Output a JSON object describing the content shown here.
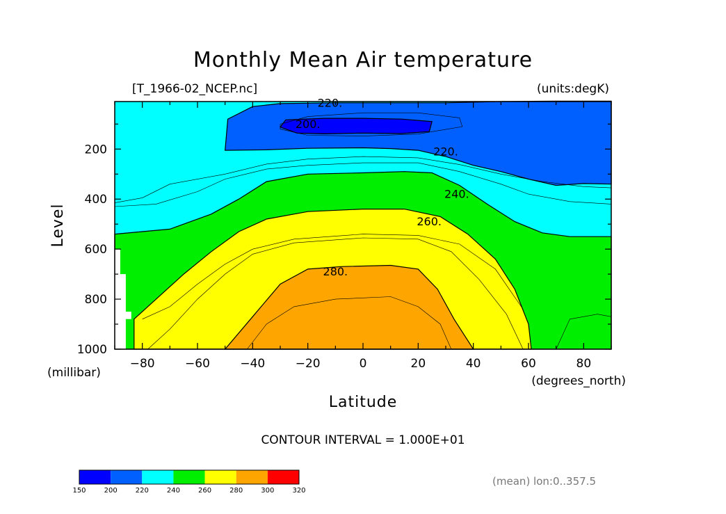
{
  "chart_data": {
    "type": "contour",
    "title": "Monthly Mean Air temperature",
    "subtitle_left": "[T_1966-02_NCEP.nc]",
    "subtitle_right": "(units:degK)",
    "xlabel": "Latitude",
    "xunit": "(degrees_north)",
    "ylabel": "Level",
    "yunit": "(millibar)",
    "xlim": [
      -90,
      90
    ],
    "ylim": [
      1000,
      10
    ],
    "xticks": [
      "−80",
      "−60",
      "−40",
      "−20",
      "0",
      "20",
      "40",
      "60",
      "80"
    ],
    "xtick_values": [
      -80,
      -60,
      -40,
      -20,
      0,
      20,
      40,
      60,
      80
    ],
    "yticks": [
      "200",
      "400",
      "600",
      "800",
      "1000"
    ],
    "ytick_values": [
      200,
      400,
      600,
      800,
      1000
    ],
    "contour_labels": [
      {
        "text": "220.",
        "lat": -12,
        "lev": 25
      },
      {
        "text": "200.",
        "lat": -20,
        "lev": 110
      },
      {
        "text": "220.",
        "lat": 30,
        "lev": 220
      },
      {
        "text": "240.",
        "lat": 34,
        "lev": 390
      },
      {
        "text": "260.",
        "lat": 24,
        "lev": 500
      },
      {
        "text": "280.",
        "lat": -10,
        "lev": 700
      }
    ],
    "contour_interval_text": "CONTOUR INTERVAL = 1.000E+01",
    "footnote": "(mean) lon:0..357.5",
    "colorbar": {
      "ticks": [
        "150",
        "200",
        "220",
        "240",
        "260",
        "280",
        "300",
        "320"
      ],
      "colors": [
        "#0000ff",
        "#0060ff",
        "#00ffff",
        "#00ee00",
        "#ffff00",
        "#ffa500",
        "#ff0000"
      ]
    },
    "bands": [
      {
        "name": "<200",
        "color": "#0000ff",
        "boundary": [
          [
            -30,
            112
          ],
          [
            -24,
            136
          ],
          [
            -14,
            139
          ],
          [
            0,
            136
          ],
          [
            14,
            138
          ],
          [
            24,
            130
          ],
          [
            25,
            90
          ],
          [
            14,
            80
          ],
          [
            0,
            77
          ],
          [
            -14,
            77
          ],
          [
            -28,
            83
          ]
        ]
      },
      {
        "name": "200-220",
        "color": "#0060ff",
        "boundary": [
          [
            -50,
            205
          ],
          [
            -49,
            80
          ],
          [
            -40,
            30
          ],
          [
            -30,
            18
          ],
          [
            -10,
            15
          ],
          [
            10,
            15
          ],
          [
            30,
            15
          ],
          [
            50,
            10
          ],
          [
            70,
            8
          ],
          [
            90,
            8
          ],
          [
            90,
            340
          ],
          [
            80,
            338
          ],
          [
            70,
            345
          ],
          [
            60,
            320
          ],
          [
            50,
            290
          ],
          [
            40,
            265
          ],
          [
            30,
            230
          ],
          [
            20,
            205
          ],
          [
            10,
            198
          ],
          [
            0,
            195
          ],
          [
            -20,
            197
          ],
          [
            -35,
            203
          ]
        ]
      },
      {
        "name": "240-260",
        "color": "#00ee00",
        "boundary": [
          [
            -90,
            540
          ],
          [
            -70,
            520
          ],
          [
            -55,
            460
          ],
          [
            -45,
            400
          ],
          [
            -35,
            330
          ],
          [
            -20,
            300
          ],
          [
            0,
            295
          ],
          [
            15,
            290
          ],
          [
            25,
            295
          ],
          [
            35,
            345
          ],
          [
            45,
            420
          ],
          [
            55,
            490
          ],
          [
            65,
            535
          ],
          [
            75,
            550
          ],
          [
            90,
            550
          ],
          [
            90,
            1000
          ],
          [
            -90,
            1000
          ]
        ]
      },
      {
        "name": "260-280",
        "color": "#ffff00",
        "boundary": [
          [
            -83,
            880
          ],
          [
            -75,
            800
          ],
          [
            -65,
            700
          ],
          [
            -55,
            610
          ],
          [
            -45,
            530
          ],
          [
            -35,
            480
          ],
          [
            -20,
            450
          ],
          [
            0,
            440
          ],
          [
            15,
            440
          ],
          [
            28,
            470
          ],
          [
            38,
            540
          ],
          [
            48,
            640
          ],
          [
            55,
            760
          ],
          [
            60,
            900
          ],
          [
            61,
            1000
          ],
          [
            -83,
            1000
          ]
        ]
      },
      {
        "name": "280-300",
        "color": "#ffa500",
        "boundary": [
          [
            -50,
            1000
          ],
          [
            -40,
            870
          ],
          [
            -30,
            740
          ],
          [
            -20,
            680
          ],
          [
            -8,
            670
          ],
          [
            10,
            665
          ],
          [
            20,
            680
          ],
          [
            27,
            760
          ],
          [
            33,
            880
          ],
          [
            40,
            1000
          ]
        ]
      }
    ],
    "missing_region": {
      "boundary": [
        [
          -90,
          600
        ],
        [
          -88,
          600
        ],
        [
          -88,
          700
        ],
        [
          -86,
          700
        ],
        [
          -86,
          850
        ],
        [
          -84,
          850
        ],
        [
          -84,
          880
        ],
        [
          -86,
          880
        ],
        [
          -86,
          1000
        ],
        [
          -90,
          1000
        ]
      ]
    },
    "contour_lines": [
      [
        [
          -90,
          415
        ],
        [
          -80,
          395
        ],
        [
          -70,
          340
        ],
        [
          -50,
          300
        ],
        [
          -35,
          260
        ],
        [
          -20,
          240
        ],
        [
          0,
          230
        ],
        [
          20,
          235
        ],
        [
          35,
          262
        ],
        [
          50,
          300
        ],
        [
          65,
          330
        ],
        [
          80,
          350
        ],
        [
          90,
          355
        ]
      ],
      [
        [
          -90,
          430
        ],
        [
          -75,
          420
        ],
        [
          -60,
          370
        ],
        [
          -50,
          320
        ],
        [
          -35,
          280
        ],
        [
          -20,
          265
        ],
        [
          0,
          255
        ],
        [
          20,
          255
        ],
        [
          35,
          290
        ],
        [
          50,
          340
        ],
        [
          60,
          380
        ],
        [
          75,
          410
        ],
        [
          90,
          420
        ]
      ],
      [
        [
          -78,
          1000
        ],
        [
          -70,
          920
        ],
        [
          -60,
          800
        ],
        [
          -50,
          700
        ],
        [
          -40,
          620
        ],
        [
          -25,
          575
        ],
        [
          0,
          555
        ],
        [
          20,
          560
        ],
        [
          32,
          610
        ],
        [
          42,
          720
        ],
        [
          52,
          860
        ],
        [
          58,
          1000
        ]
      ],
      [
        [
          -42,
          1000
        ],
        [
          -35,
          900
        ],
        [
          -25,
          830
        ],
        [
          -10,
          800
        ],
        [
          10,
          790
        ],
        [
          20,
          830
        ],
        [
          28,
          900
        ],
        [
          32,
          1000
        ]
      ],
      [
        [
          -30,
          100
        ],
        [
          -20,
          70
        ],
        [
          0,
          55
        ],
        [
          20,
          55
        ],
        [
          35,
          75
        ],
        [
          36,
          110
        ],
        [
          20,
          140
        ],
        [
          0,
          148
        ],
        [
          -20,
          145
        ],
        [
          -30,
          120
        ],
        [
          -30,
          100
        ]
      ],
      [
        [
          -80,
          880
        ],
        [
          -70,
          830
        ],
        [
          -60,
          740
        ],
        [
          -50,
          660
        ],
        [
          -40,
          600
        ],
        [
          -25,
          560
        ],
        [
          0,
          540
        ],
        [
          20,
          545
        ],
        [
          35,
          580
        ],
        [
          48,
          680
        ],
        [
          58,
          840
        ]
      ],
      [
        [
          70,
          1000
        ],
        [
          75,
          880
        ],
        [
          85,
          860
        ],
        [
          90,
          870
        ]
      ]
    ]
  }
}
